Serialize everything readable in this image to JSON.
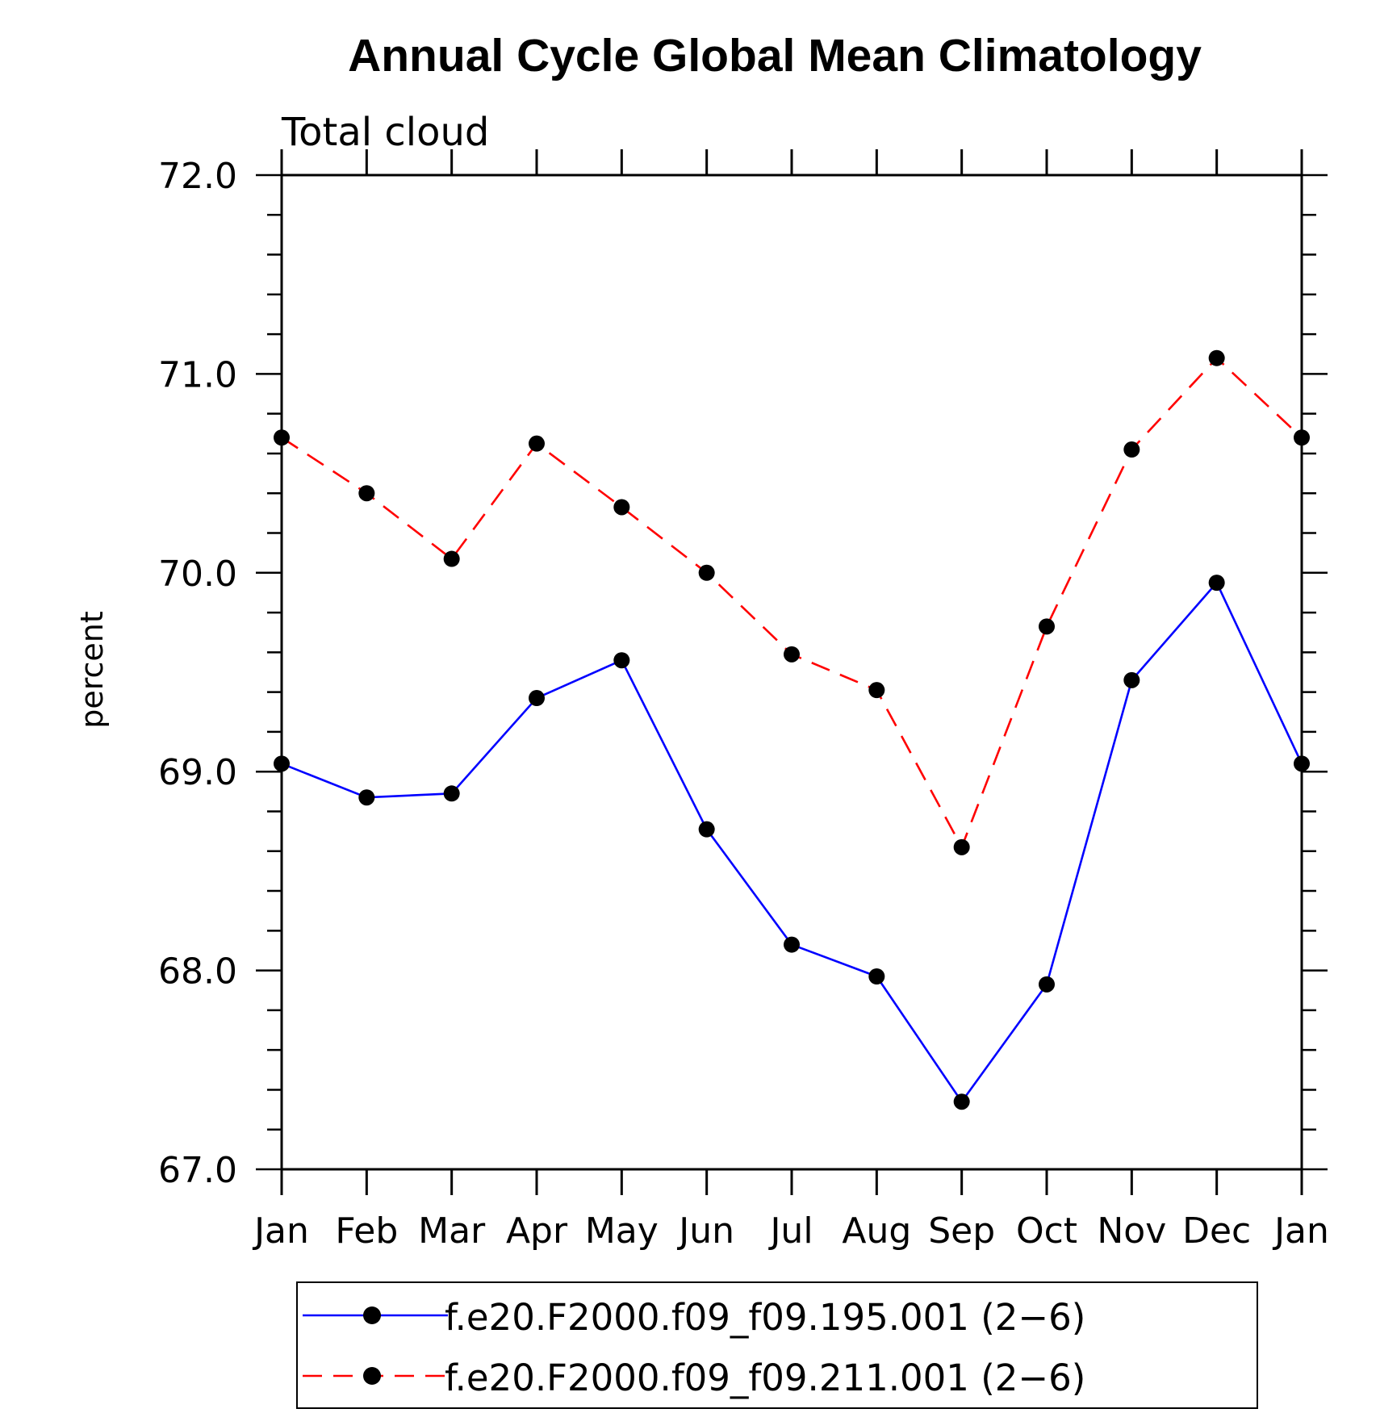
{
  "chart_data": {
    "type": "line",
    "title": "Annual Cycle Global Mean Climatology",
    "subtitle": "Total cloud",
    "xlabel": "",
    "ylabel": "percent",
    "ylim": [
      67.0,
      72.0
    ],
    "yticks": [
      "67.0",
      "68.0",
      "69.0",
      "70.0",
      "71.0",
      "72.0"
    ],
    "categories": [
      "Jan",
      "Feb",
      "Mar",
      "Apr",
      "May",
      "Jun",
      "Jul",
      "Aug",
      "Sep",
      "Oct",
      "Nov",
      "Dec",
      "Jan"
    ],
    "series": [
      {
        "name": "f.e20.F2000.f09_f09.195.001 (2−6)",
        "color": "#0000ff",
        "dash": "solid",
        "marker": "filled-circle",
        "values": [
          69.04,
          68.87,
          68.89,
          69.37,
          69.56,
          68.71,
          68.13,
          67.97,
          67.34,
          67.93,
          69.46,
          69.95,
          69.04
        ]
      },
      {
        "name": "f.e20.F2000.f09_f09.211.001 (2−6)",
        "color": "#ff0000",
        "dash": "dashed",
        "marker": "filled-circle",
        "values": [
          70.68,
          70.4,
          70.07,
          70.65,
          70.33,
          70.0,
          69.59,
          69.41,
          68.62,
          69.73,
          70.62,
          71.08,
          70.68
        ]
      }
    ],
    "legend_position": "bottom-center",
    "grid": false
  }
}
